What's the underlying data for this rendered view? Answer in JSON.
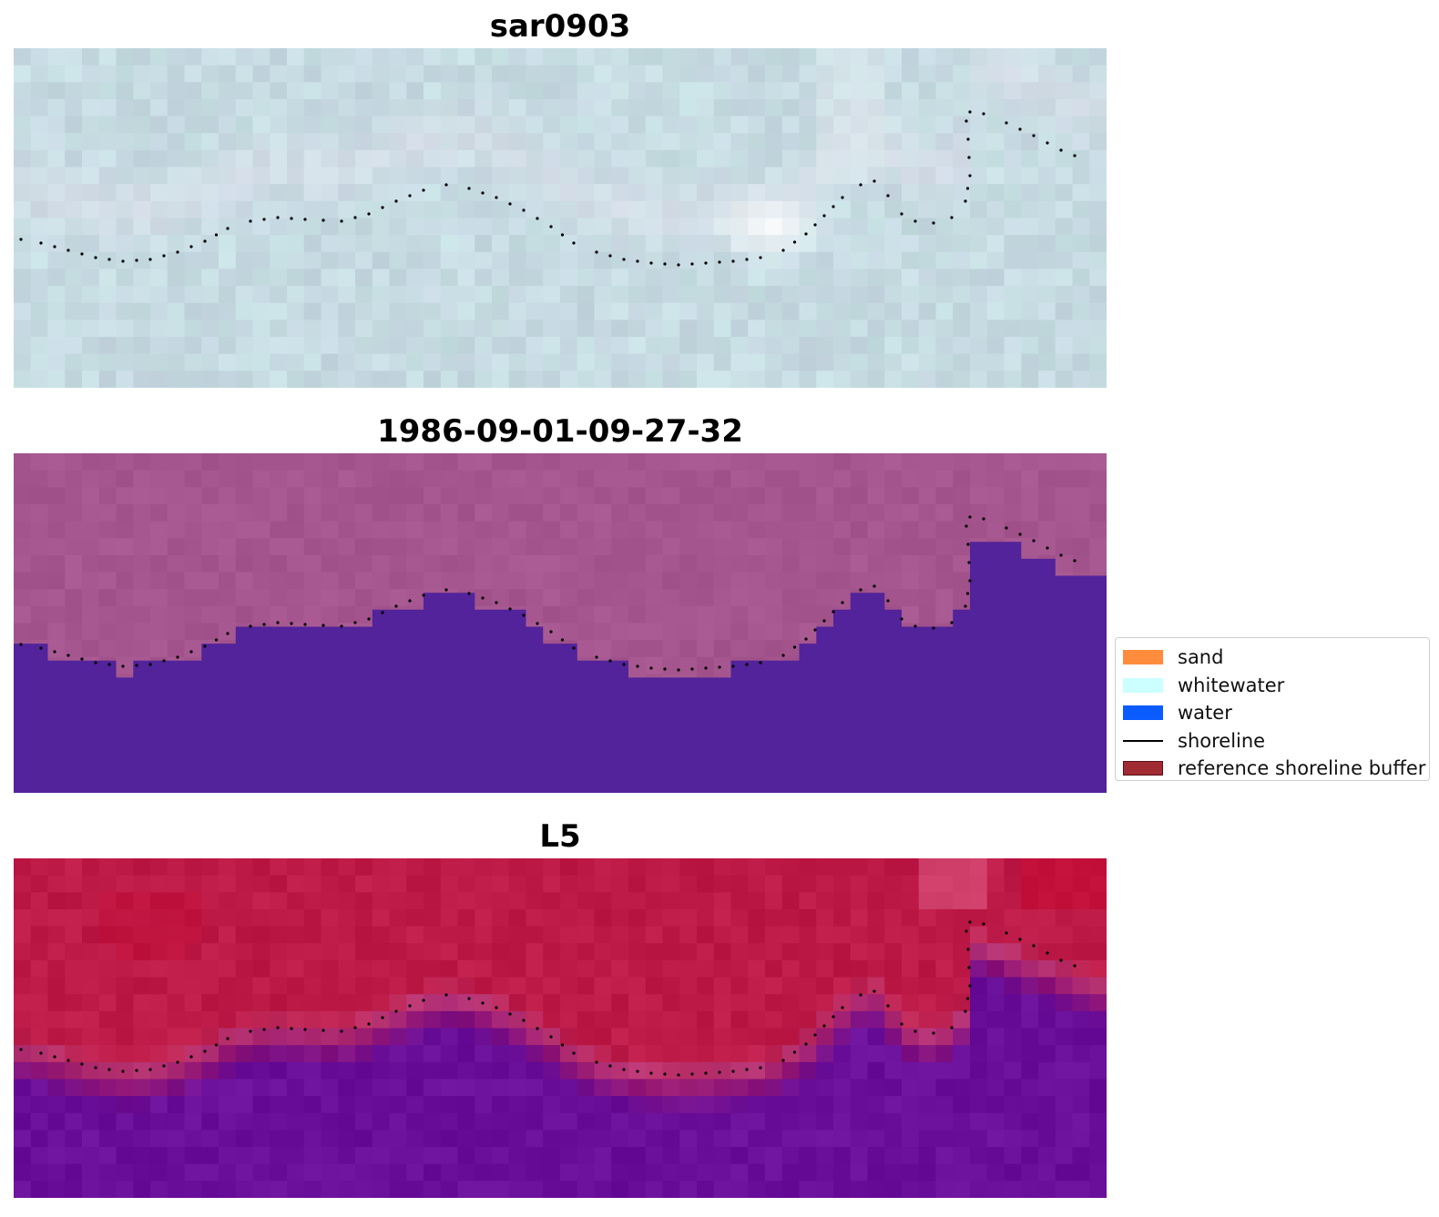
{
  "panels": [
    {
      "title": "sar0903",
      "style": "sar"
    },
    {
      "title": "1986-09-01-09-27-32",
      "style": "class"
    },
    {
      "title": "L5",
      "style": "l5"
    }
  ],
  "legend": {
    "items": [
      {
        "label": "sand",
        "type": "patch",
        "color": "#ff8c3d"
      },
      {
        "label": "whitewater",
        "type": "patch",
        "color": "#ccffff"
      },
      {
        "label": "water",
        "type": "patch",
        "color": "#0a5cff"
      },
      {
        "label": "shoreline",
        "type": "line",
        "color": "#000000"
      },
      {
        "label": "reference shoreline buffer",
        "type": "patch",
        "color": "#a02b33"
      }
    ]
  },
  "colors": {
    "sar_base": "#c6dbe2",
    "class_land": "#a5568f",
    "class_water": "#52239a",
    "l5_land": "#bd1a47",
    "l5_water": "#6a0f9a",
    "shoreline_dots": "#000000"
  }
}
